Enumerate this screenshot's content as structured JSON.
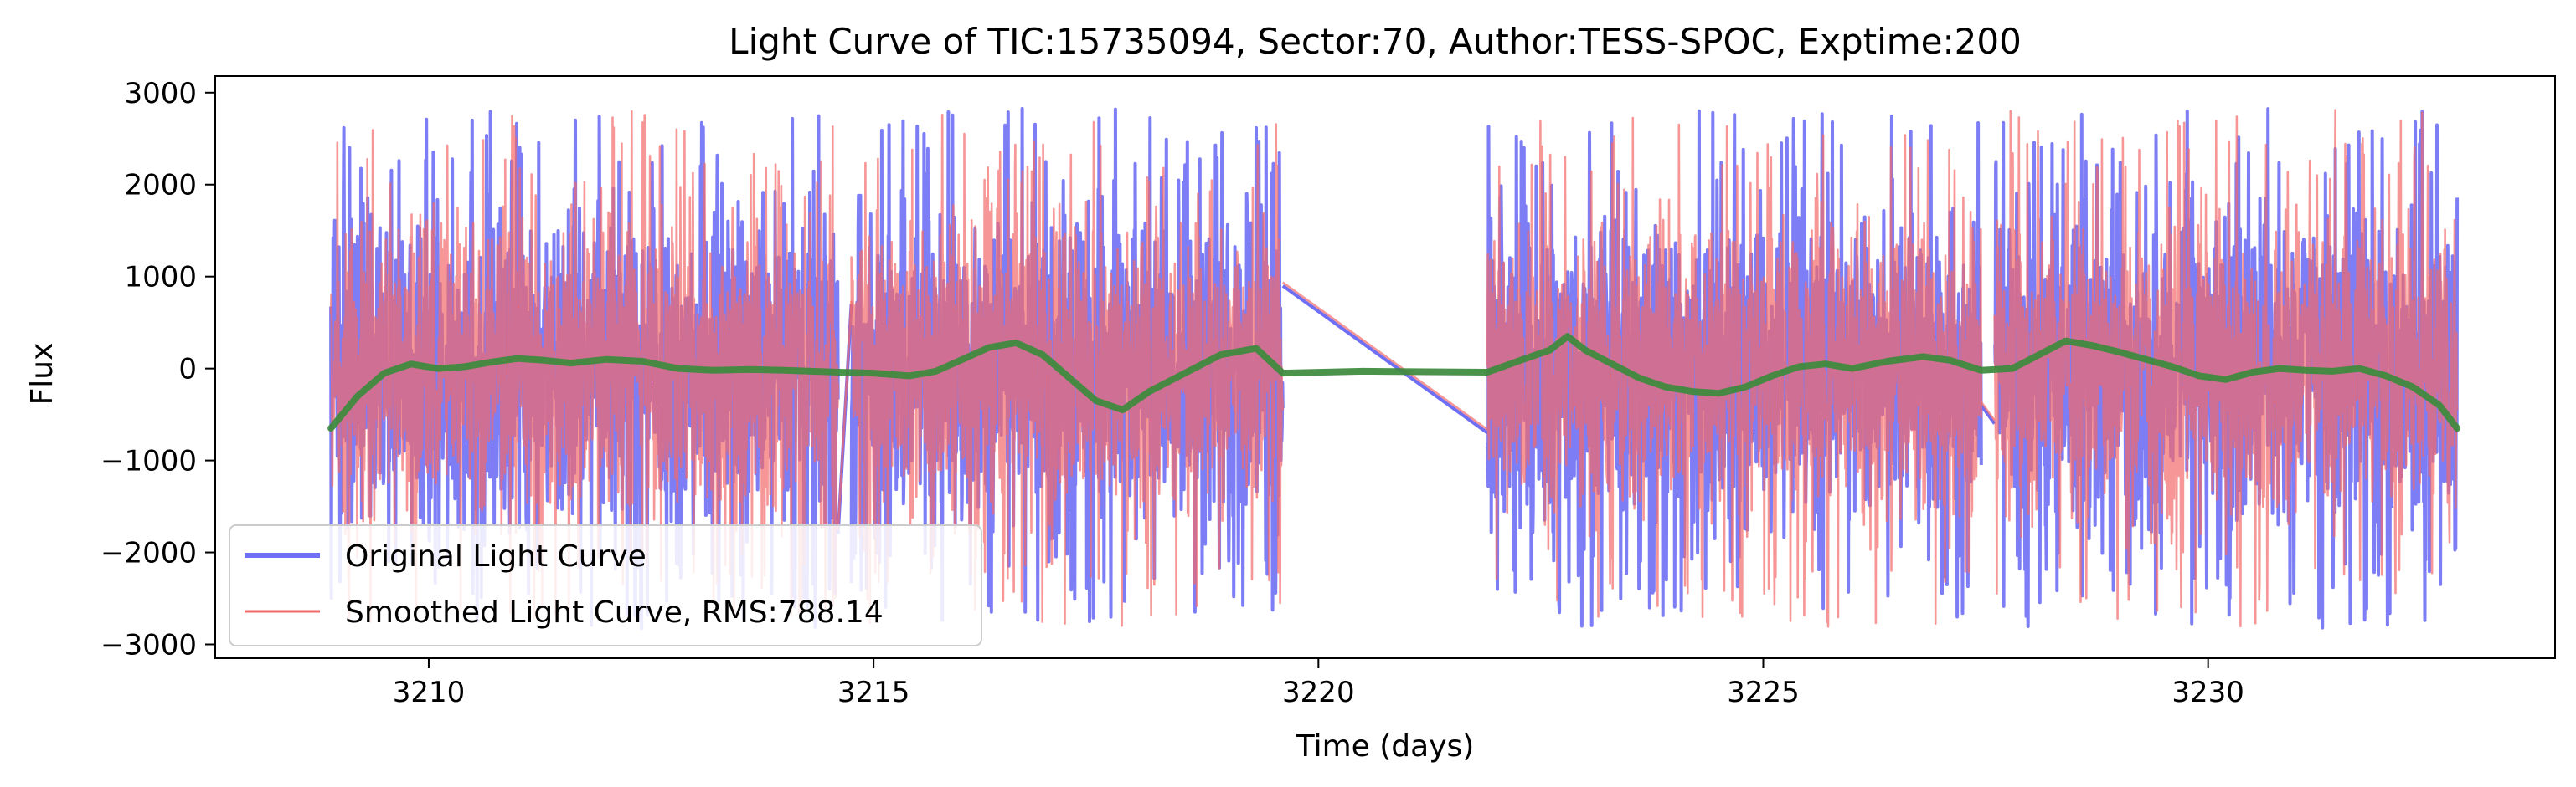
{
  "chart_data": {
    "type": "line",
    "title": "Light Curve of TIC:15735094, Sector:70, Author:TESS-SPOC, Exptime:200",
    "xlabel": "Time (days)",
    "ylabel": "Flux",
    "xlim": [
      3207.6,
      3233.9
    ],
    "ylim": [
      -3150,
      3180
    ],
    "xticks": [
      3210,
      3215,
      3220,
      3225,
      3230
    ],
    "yticks": [
      -3000,
      -2000,
      -1000,
      0,
      1000,
      2000,
      3000
    ],
    "grid": false,
    "legend_position": "lower-left",
    "segments": [
      [
        3208.9,
        3214.6
      ],
      [
        3214.75,
        3219.6
      ],
      [
        3221.9,
        3227.45
      ],
      [
        3227.6,
        3232.8
      ]
    ],
    "flux_envelope": {
      "typical_range": [
        -2000,
        2000
      ],
      "spike_max": 2870,
      "spike_min": -2850
    },
    "series": [
      {
        "name": "Original Light Curve",
        "color": "#6f6ff5",
        "style": "noisy",
        "gap_connectors": [
          {
            "x": [
              3214.6,
              3214.75
            ],
            "y": [
              -1800,
              700
            ]
          },
          {
            "x": [
              3219.6,
              3221.9
            ],
            "y": [
              900,
              -700
            ]
          },
          {
            "x": [
              3227.45,
              3227.6
            ],
            "y": [
              -400,
              -600
            ]
          }
        ]
      },
      {
        "name": "Smoothed Light Curve, RMS:788.14",
        "color": "#f26a6a",
        "style": "noisy"
      },
      {
        "name": "",
        "color": "#3c8a3c",
        "style": "trend",
        "x": [
          3208.9,
          3209.2,
          3209.5,
          3209.8,
          3210.1,
          3210.4,
          3210.7,
          3211.0,
          3211.3,
          3211.6,
          3212.0,
          3212.4,
          3212.8,
          3213.2,
          3213.6,
          3214.0,
          3214.3,
          3214.6,
          3215.0,
          3215.4,
          3215.7,
          3216.0,
          3216.3,
          3216.6,
          3216.9,
          3217.2,
          3217.5,
          3217.8,
          3218.1,
          3218.5,
          3218.9,
          3219.3,
          3219.6,
          3220.5,
          3221.9,
          3222.3,
          3222.6,
          3222.8,
          3223.0,
          3223.3,
          3223.6,
          3223.9,
          3224.2,
          3224.5,
          3224.8,
          3225.1,
          3225.4,
          3225.7,
          3226.0,
          3226.4,
          3226.8,
          3227.1,
          3227.45,
          3227.8,
          3228.1,
          3228.4,
          3228.7,
          3229.0,
          3229.3,
          3229.6,
          3229.9,
          3230.2,
          3230.5,
          3230.8,
          3231.1,
          3231.4,
          3231.7,
          3232.0,
          3232.3,
          3232.6,
          3232.8
        ],
        "y": [
          -650,
          -300,
          -50,
          50,
          0,
          20,
          70,
          110,
          90,
          60,
          100,
          80,
          0,
          -20,
          -10,
          -20,
          -30,
          -40,
          -50,
          -80,
          -30,
          100,
          230,
          280,
          150,
          -100,
          -350,
          -450,
          -250,
          -50,
          150,
          220,
          -50,
          -30,
          -40,
          100,
          200,
          350,
          200,
          50,
          -100,
          -200,
          -250,
          -270,
          -200,
          -80,
          20,
          50,
          0,
          80,
          130,
          90,
          -20,
          0,
          150,
          300,
          250,
          180,
          100,
          20,
          -80,
          -120,
          -40,
          0,
          -20,
          -30,
          0,
          -80,
          -200,
          -400,
          -650
        ]
      }
    ]
  }
}
